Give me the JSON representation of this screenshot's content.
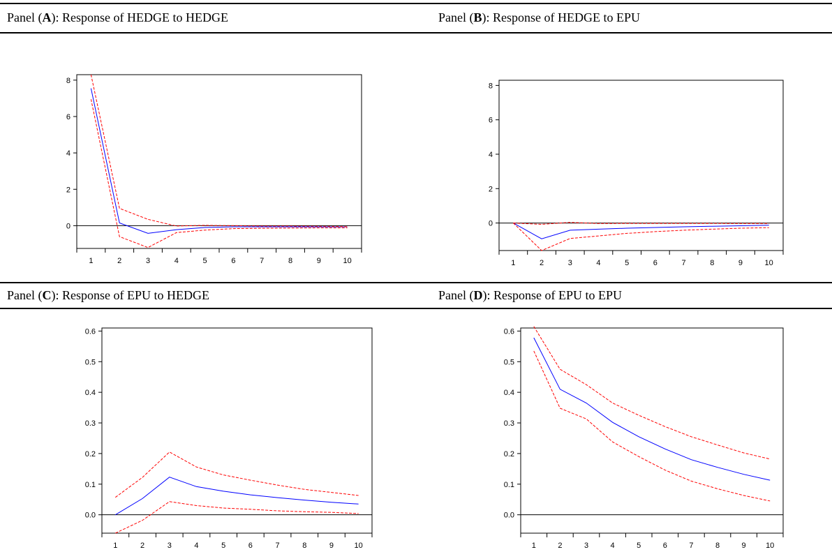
{
  "panels": [
    {
      "prefix": "Panel (",
      "letter": "A",
      "suffix": "): Response of HEDGE to HEDGE"
    },
    {
      "prefix": "Panel (",
      "letter": "B",
      "suffix": "): Response of HEDGE to EPU"
    },
    {
      "prefix": "Panel (",
      "letter": "C",
      "suffix": "): Response of EPU to HEDGE"
    },
    {
      "prefix": "Panel (",
      "letter": "D",
      "suffix": "): Response of EPU to EPU"
    }
  ],
  "colors": {
    "response": "#0000ff",
    "band": "#ff0000",
    "zero": "#000000"
  },
  "chart_data": [
    {
      "type": "line",
      "x": [
        1,
        2,
        3,
        4,
        5,
        6,
        7,
        8,
        9,
        10
      ],
      "ylim": [
        -1.25,
        8.3
      ],
      "yticks": [
        0,
        2,
        4,
        6,
        8
      ],
      "ytick_labels": [
        "0",
        "2",
        "4",
        "6",
        "8"
      ],
      "series": [
        {
          "role": "response",
          "values": [
            7.55,
            0.15,
            -0.42,
            -0.22,
            -0.1,
            -0.06,
            -0.06,
            -0.06,
            -0.06,
            -0.06
          ]
        },
        {
          "role": "upper",
          "values": [
            8.3,
            0.95,
            0.35,
            -0.02,
            0.02,
            0.0,
            -0.02,
            -0.02,
            -0.03,
            -0.05
          ]
        },
        {
          "role": "lower",
          "values": [
            6.95,
            -0.6,
            -1.2,
            -0.38,
            -0.24,
            -0.16,
            -0.14,
            -0.13,
            -0.12,
            -0.12
          ]
        }
      ]
    },
    {
      "type": "line",
      "x": [
        1,
        2,
        3,
        4,
        5,
        6,
        7,
        8,
        9,
        10
      ],
      "ylim": [
        -1.6,
        8.3
      ],
      "yticks": [
        0,
        2,
        4,
        6,
        8
      ],
      "ytick_labels": [
        "0",
        "2",
        "4",
        "6",
        "8"
      ],
      "series": [
        {
          "role": "response",
          "values": [
            0.0,
            -0.92,
            -0.42,
            -0.36,
            -0.3,
            -0.26,
            -0.22,
            -0.19,
            -0.16,
            -0.13
          ]
        },
        {
          "role": "upper",
          "values": [
            0.0,
            -0.08,
            0.04,
            -0.03,
            -0.02,
            -0.02,
            -0.02,
            -0.02,
            -0.03,
            -0.03
          ]
        },
        {
          "role": "lower",
          "values": [
            0.0,
            -1.6,
            -0.9,
            -0.75,
            -0.6,
            -0.5,
            -0.42,
            -0.36,
            -0.3,
            -0.27
          ]
        }
      ]
    },
    {
      "type": "line",
      "x": [
        1,
        2,
        3,
        4,
        5,
        6,
        7,
        8,
        9,
        10
      ],
      "ylim": [
        -0.06,
        0.61
      ],
      "yticks": [
        0.0,
        0.1,
        0.2,
        0.3,
        0.4,
        0.5,
        0.6
      ],
      "ytick_labels": [
        "0.0",
        "0.1",
        "0.2",
        "0.3",
        "0.4",
        "0.5",
        "0.6"
      ],
      "series": [
        {
          "role": "response",
          "values": [
            0.0,
            0.053,
            0.123,
            0.092,
            0.077,
            0.065,
            0.056,
            0.048,
            0.041,
            0.035
          ]
        },
        {
          "role": "upper",
          "values": [
            0.057,
            0.122,
            0.205,
            0.156,
            0.13,
            0.113,
            0.097,
            0.083,
            0.073,
            0.063
          ]
        },
        {
          "role": "lower",
          "values": [
            -0.06,
            -0.018,
            0.043,
            0.03,
            0.022,
            0.018,
            0.013,
            0.01,
            0.008,
            0.004
          ]
        }
      ]
    },
    {
      "type": "line",
      "x": [
        1,
        2,
        3,
        4,
        5,
        6,
        7,
        8,
        9,
        10
      ],
      "ylim": [
        -0.06,
        0.61
      ],
      "yticks": [
        0.0,
        0.1,
        0.2,
        0.3,
        0.4,
        0.5,
        0.6
      ],
      "ytick_labels": [
        "0.0",
        "0.1",
        "0.2",
        "0.3",
        "0.4",
        "0.5",
        "0.6"
      ],
      "series": [
        {
          "role": "response",
          "values": [
            0.578,
            0.41,
            0.365,
            0.302,
            0.255,
            0.215,
            0.18,
            0.155,
            0.132,
            0.113
          ]
        },
        {
          "role": "upper",
          "values": [
            0.615,
            0.475,
            0.425,
            0.365,
            0.325,
            0.288,
            0.255,
            0.228,
            0.202,
            0.182
          ]
        },
        {
          "role": "lower",
          "values": [
            0.535,
            0.348,
            0.313,
            0.238,
            0.19,
            0.146,
            0.11,
            0.085,
            0.063,
            0.045
          ]
        }
      ]
    }
  ]
}
